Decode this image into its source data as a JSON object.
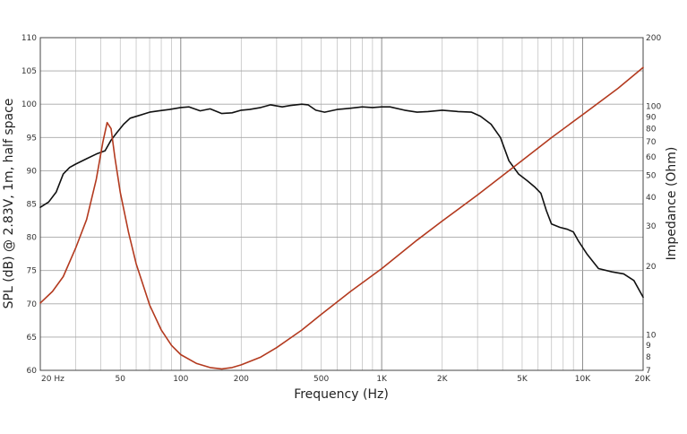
{
  "chart_data": {
    "type": "line",
    "xlabel": "Frequency (Hz)",
    "ylabel_left": "SPL (dB) @ 2.83V, 1m, half space",
    "ylabel_right": "Impedance (Ohm)",
    "x_scale": "log",
    "xlim": [
      20,
      20000
    ],
    "ylim_left": [
      60,
      110
    ],
    "ylim_right_log": [
      7,
      200
    ],
    "grid": true,
    "x_ticks": [
      {
        "value": 20,
        "label": "20 Hz"
      },
      {
        "value": 50,
        "label": "50"
      },
      {
        "value": 100,
        "label": "100"
      },
      {
        "value": 200,
        "label": "200"
      },
      {
        "value": 500,
        "label": "500"
      },
      {
        "value": 1000,
        "label": "1K"
      },
      {
        "value": 2000,
        "label": "2K"
      },
      {
        "value": 5000,
        "label": "5K"
      },
      {
        "value": 10000,
        "label": "10K"
      },
      {
        "value": 20000,
        "label": "20K"
      }
    ],
    "y_left_ticks": [
      60,
      65,
      70,
      75,
      80,
      85,
      90,
      95,
      100,
      105,
      110
    ],
    "y_right_ticks": [
      {
        "value": 7,
        "label": "7"
      },
      {
        "value": 8,
        "label": "8"
      },
      {
        "value": 9,
        "label": "9"
      },
      {
        "value": 10,
        "label": "10"
      },
      {
        "value": 20,
        "label": "20"
      },
      {
        "value": 30,
        "label": "30"
      },
      {
        "value": 40,
        "label": "40"
      },
      {
        "value": 50,
        "label": "50"
      },
      {
        "value": 60,
        "label": "60"
      },
      {
        "value": 70,
        "label": "70"
      },
      {
        "value": 80,
        "label": "80"
      },
      {
        "value": 90,
        "label": "90"
      },
      {
        "value": 100,
        "label": "100"
      },
      {
        "value": 200,
        "label": "200"
      }
    ],
    "series": [
      {
        "axis": "left",
        "color": "#111111",
        "x": [
          20,
          22,
          24,
          26,
          28,
          30,
          34,
          38,
          42,
          45,
          48,
          52,
          56,
          62,
          70,
          78,
          88,
          100,
          110,
          125,
          140,
          160,
          180,
          200,
          220,
          250,
          280,
          320,
          350,
          400,
          430,
          470,
          520,
          600,
          700,
          800,
          900,
          1000,
          1100,
          1300,
          1500,
          1700,
          2000,
          2400,
          2800,
          3100,
          3500,
          3900,
          4300,
          4800,
          5300,
          5800,
          6200,
          6600,
          7000,
          7700,
          8400,
          9000,
          9500,
          10500,
          12000,
          14000,
          16000,
          18000,
          20000
        ],
        "y": [
          84.5,
          85.3,
          86.8,
          89.5,
          90.5,
          91.0,
          91.8,
          92.5,
          93.0,
          94.6,
          95.7,
          97.0,
          97.9,
          98.3,
          98.8,
          99.0,
          99.2,
          99.5,
          99.6,
          99.0,
          99.3,
          98.6,
          98.7,
          99.1,
          99.2,
          99.5,
          99.9,
          99.6,
          99.8,
          100.0,
          99.9,
          99.1,
          98.8,
          99.2,
          99.4,
          99.6,
          99.5,
          99.6,
          99.6,
          99.1,
          98.8,
          98.9,
          99.1,
          98.9,
          98.8,
          98.2,
          97.0,
          95.0,
          91.5,
          89.5,
          88.5,
          87.5,
          86.6,
          84.0,
          82.0,
          81.5,
          81.2,
          80.8,
          79.5,
          77.5,
          75.3,
          74.8,
          74.5,
          73.5,
          71.0
        ]
      },
      {
        "axis": "right",
        "color": "#b33a1f",
        "x": [
          20,
          23,
          26,
          30,
          34,
          38,
          41,
          43,
          45,
          47,
          50,
          55,
          60,
          70,
          80,
          90,
          100,
          120,
          140,
          160,
          180,
          200,
          250,
          300,
          400,
          500,
          700,
          1000,
          1500,
          2000,
          3000,
          5000,
          7000,
          10000,
          15000,
          20000
        ],
        "y": [
          13.8,
          15.5,
          18.0,
          24.0,
          32.0,
          48.0,
          70.0,
          85.0,
          80.0,
          60.0,
          42.0,
          28.0,
          20.5,
          13.5,
          10.5,
          9.0,
          8.2,
          7.5,
          7.2,
          7.1,
          7.2,
          7.4,
          8.0,
          8.8,
          10.5,
          12.3,
          15.5,
          19.5,
          26.0,
          31.5,
          41.0,
          58.0,
          73.0,
          92.0,
          120.0,
          148.0
        ]
      }
    ]
  }
}
